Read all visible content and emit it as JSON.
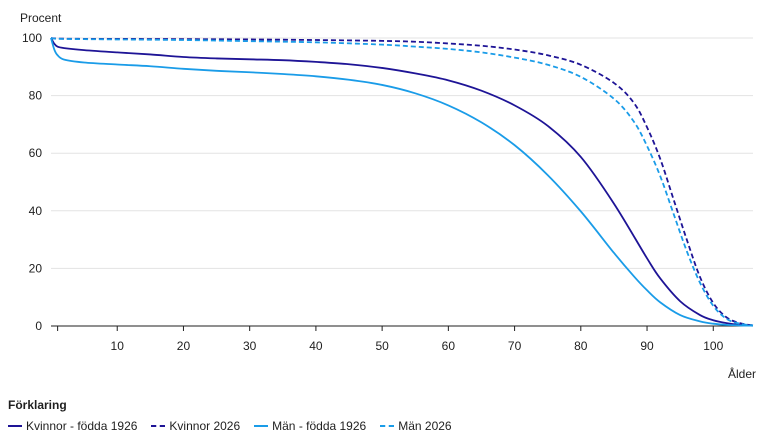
{
  "chart_data": {
    "type": "line",
    "ylabel": "Procent",
    "xlabel": "Ålder",
    "xlim": [
      0,
      106
    ],
    "ylim": [
      0,
      100
    ],
    "x_ticks": [
      10,
      20,
      30,
      40,
      50,
      60,
      70,
      80,
      90,
      100
    ],
    "y_ticks": [
      0,
      20,
      40,
      60,
      80,
      100
    ],
    "grid": "horizontal",
    "legend_title": "Förklaring",
    "legend_position": "bottom-left",
    "series": [
      {
        "name": "Kvinnor - födda 1926",
        "color": "#1e1496",
        "style": "solid",
        "x": [
          0,
          0.5,
          1,
          2,
          5,
          10,
          15,
          20,
          25,
          30,
          35,
          40,
          45,
          50,
          55,
          60,
          65,
          70,
          75,
          80,
          85,
          90,
          92,
          95,
          98,
          100,
          102,
          104,
          106
        ],
        "y": [
          100,
          98,
          97,
          96.5,
          95.8,
          95,
          94.3,
          93.4,
          92.9,
          92.6,
          92.3,
          91.7,
          90.9,
          89.6,
          87.7,
          85.3,
          81.7,
          76.6,
          69.5,
          58.7,
          42.5,
          23.5,
          16.5,
          8.6,
          3.8,
          2,
          1,
          0.4,
          0.2
        ]
      },
      {
        "name": "Kvinnor 2026",
        "color": "#1e1496",
        "style": "dashed",
        "x": [
          0,
          1,
          5,
          10,
          20,
          30,
          40,
          50,
          55,
          60,
          65,
          70,
          75,
          80,
          85,
          88,
          90,
          92,
          94,
          96,
          98,
          100,
          102,
          104,
          106
        ],
        "y": [
          100,
          99.8,
          99.7,
          99.7,
          99.6,
          99.5,
          99.3,
          99,
          98.7,
          98.1,
          97.3,
          96,
          94,
          90.7,
          84.4,
          77.5,
          69,
          58,
          44,
          30,
          17,
          8,
          3,
          1,
          0.2
        ]
      },
      {
        "name": "Män - födda 1926",
        "color": "#1a9ce8",
        "style": "solid",
        "x": [
          0,
          0.5,
          1,
          2,
          5,
          10,
          15,
          20,
          25,
          30,
          35,
          40,
          45,
          50,
          55,
          60,
          65,
          70,
          75,
          80,
          85,
          88,
          90,
          92,
          95,
          98,
          100,
          102,
          104,
          106
        ],
        "y": [
          100,
          96,
          94,
          92.5,
          91.5,
          90.8,
          90.2,
          89.3,
          88.6,
          88.1,
          87.5,
          86.7,
          85.5,
          83.7,
          80.8,
          76.6,
          70.7,
          62.8,
          52.4,
          39.8,
          25.4,
          17.3,
          12.4,
          8.2,
          3.8,
          1.6,
          0.8,
          0.4,
          0.2,
          0.1
        ]
      },
      {
        "name": "Män 2026",
        "color": "#1a9ce8",
        "style": "dashed",
        "x": [
          0,
          1,
          5,
          10,
          20,
          30,
          40,
          50,
          55,
          60,
          65,
          70,
          75,
          80,
          85,
          88,
          90,
          92,
          94,
          96,
          98,
          100,
          102,
          104,
          106
        ],
        "y": [
          100,
          99.7,
          99.6,
          99.5,
          99.3,
          98.9,
          98.5,
          97.7,
          97,
          96.2,
          95,
          93.2,
          90.7,
          86.5,
          78.9,
          71,
          62.5,
          52,
          39,
          26,
          15,
          7,
          2.5,
          0.8,
          0.2
        ]
      }
    ]
  }
}
